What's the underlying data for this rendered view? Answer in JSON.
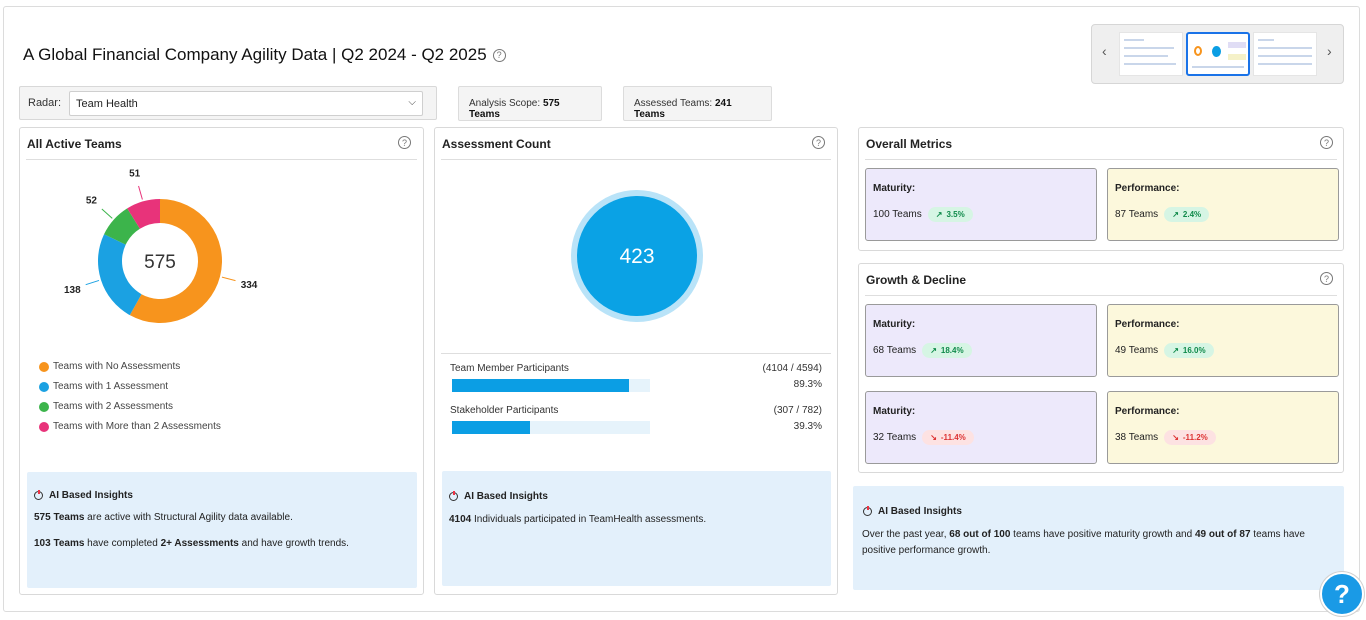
{
  "header": {
    "title": "A Global Financial Company Agility Data | Q2 2024 - Q2 2025"
  },
  "radar": {
    "label": "Radar:",
    "selected": "Team Health"
  },
  "scope": {
    "analysis_label": "Analysis Scope:",
    "analysis_value": "575 Teams",
    "assessed_label": "Assessed Teams:",
    "assessed_value": "241 Teams"
  },
  "active_teams": {
    "title": "All Active Teams",
    "total": "575",
    "legend": [
      {
        "label": "Teams with No Assessments",
        "color": "#f7941d"
      },
      {
        "label": "Teams with 1 Assessment",
        "color": "#1ba1e2"
      },
      {
        "label": "Teams with 2 Assessments",
        "color": "#3cb44b"
      },
      {
        "label": "Teams with More than 2 Assessments",
        "color": "#e8337a"
      }
    ],
    "insights": {
      "heading": "AI Based Insights",
      "line1_bold": "575 Teams",
      "line1_rest": " are active with Structural Agility data available.",
      "line2_bold1": "103 Teams",
      "line2_mid": " have completed ",
      "line2_bold2": "2+ Assessments",
      "line2_rest": " and have growth trends."
    }
  },
  "chart_data": {
    "type": "pie",
    "categories": [
      "Teams with No Assessments",
      "Teams with 1 Assessment",
      "Teams with 2 Assessments",
      "Teams with More than 2 Assessments"
    ],
    "values": [
      334,
      138,
      52,
      51
    ],
    "labels": [
      "334",
      "138",
      "52",
      "51"
    ],
    "colors": [
      "#f7941d",
      "#1ba1e2",
      "#3cb44b",
      "#e8337a"
    ],
    "center_label": "575"
  },
  "assessment_count": {
    "title": "Assessment Count",
    "count": "423",
    "bars": [
      {
        "label": "Team Member Participants",
        "ratio": "(4104 / 4594)",
        "pct": "89.3%",
        "fraction": 0.893
      },
      {
        "label": "Stakeholder Participants",
        "ratio": "(307 / 782)",
        "pct": "39.3%",
        "fraction": 0.393
      }
    ],
    "insights": {
      "heading": "AI Based Insights",
      "line1_bold": "4104",
      "line1_rest": " Individuals participated in TeamHealth assessments."
    }
  },
  "overall_metrics": {
    "title": "Overall Metrics",
    "cards": [
      {
        "title": "Maturity:",
        "value": "100 Teams",
        "chip": "3.5%",
        "trend": "up"
      },
      {
        "title": "Performance:",
        "value": "87 Teams",
        "chip": "2.4%",
        "trend": "up"
      }
    ]
  },
  "growth_decline": {
    "title": "Growth & Decline",
    "cards": [
      {
        "title": "Maturity:",
        "value": "68 Teams",
        "chip": "18.4%",
        "trend": "up"
      },
      {
        "title": "Performance:",
        "value": "49 Teams",
        "chip": "16.0%",
        "trend": "up"
      },
      {
        "title": "Maturity:",
        "value": "32 Teams",
        "chip": "-11.4%",
        "trend": "down"
      },
      {
        "title": "Performance:",
        "value": "38 Teams",
        "chip": "-11.2%",
        "trend": "down"
      }
    ]
  },
  "right_insights": {
    "heading": "AI Based Insights",
    "p1": "Over the past year, ",
    "b1": "68 out of 100",
    "p2": " teams have positive maturity growth and ",
    "b2": "49 out of 87",
    "p3": " teams have",
    "p4": "positive performance growth."
  },
  "help": {
    "label": "?"
  },
  "icons": {
    "help": "question-circle-icon",
    "prev": "chevron-left-icon",
    "next": "chevron-right-icon",
    "trend_up": "trend-up-icon",
    "trend_down": "trend-down-icon"
  }
}
